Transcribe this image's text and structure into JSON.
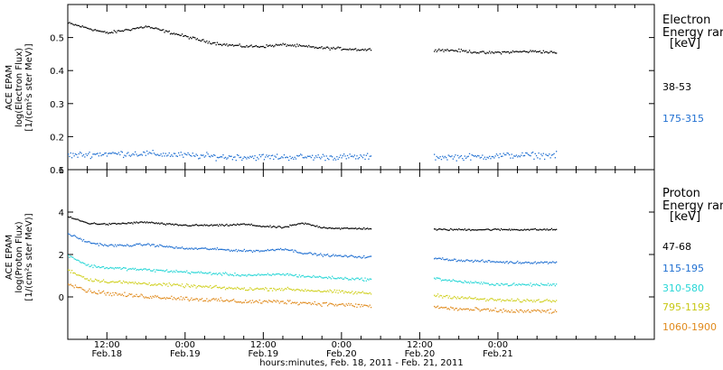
{
  "chart_data": [
    {
      "type": "scatter",
      "panel": "electron",
      "ylabel_lines": [
        "ACE EPAM",
        "log(Electron Flux)",
        "[1/(cm²s ster MeV)]"
      ],
      "ylim": [
        0.1,
        0.6
      ],
      "yticks": [
        0.1,
        0.2,
        0.3,
        0.4,
        0.5
      ],
      "ytick_labels": [
        "0.1",
        "0.2",
        "0.3",
        "0.4",
        "0.5"
      ],
      "legend_title_lines": [
        "Electron",
        "Energy ran",
        "[keV]"
      ],
      "data_gap_hours": [
        46.5,
        56.0
      ],
      "series": [
        {
          "name": "38-53",
          "color": "#000000",
          "x": [
            0,
            3,
            6,
            9,
            12,
            15,
            18,
            21,
            24,
            27,
            30,
            33,
            36,
            39,
            42,
            45,
            56,
            60,
            64,
            68,
            72,
            75
          ],
          "y": [
            0.545,
            0.53,
            0.515,
            0.525,
            0.535,
            0.52,
            0.505,
            0.49,
            0.48,
            0.475,
            0.475,
            0.48,
            0.475,
            0.47,
            0.468,
            0.465,
            0.465,
            0.462,
            0.455,
            0.458,
            0.46,
            0.455
          ]
        },
        {
          "name": "175-315",
          "color": "#1f6fd1",
          "x": [
            0,
            6,
            12,
            18,
            24,
            30,
            36,
            42,
            46,
            56,
            62,
            68,
            75
          ],
          "y": [
            0.145,
            0.15,
            0.15,
            0.145,
            0.14,
            0.14,
            0.14,
            0.14,
            0.14,
            0.14,
            0.14,
            0.145,
            0.145
          ]
        }
      ]
    },
    {
      "type": "scatter",
      "panel": "proton",
      "ylabel_lines": [
        "ACE EPAM",
        "log(Proton Flux)",
        "[1/(cm²s ster MeV)]"
      ],
      "ylim": [
        -2,
        6
      ],
      "yticks": [
        0,
        2,
        4,
        6
      ],
      "ytick_labels": [
        "0",
        "2",
        "4",
        "6"
      ],
      "legend_title_lines": [
        "Proton",
        "Energy ran",
        "[keV]"
      ],
      "data_gap_hours": [
        46.5,
        56.0
      ],
      "series": [
        {
          "name": "47-68",
          "color": "#000000",
          "x": [
            0,
            3,
            6,
            9,
            12,
            15,
            18,
            21,
            24,
            27,
            30,
            33,
            36,
            39,
            42,
            46,
            56,
            62,
            68,
            75
          ],
          "y": [
            3.8,
            3.5,
            3.45,
            3.5,
            3.55,
            3.45,
            3.4,
            3.4,
            3.4,
            3.45,
            3.35,
            3.3,
            3.5,
            3.3,
            3.25,
            3.25,
            3.2,
            3.2,
            3.2,
            3.2
          ]
        },
        {
          "name": "115-195",
          "color": "#1f6fd1",
          "x": [
            0,
            3,
            6,
            9,
            12,
            15,
            18,
            21,
            24,
            27,
            30,
            33,
            36,
            39,
            42,
            46,
            56,
            60,
            64,
            68,
            75
          ],
          "y": [
            3.0,
            2.6,
            2.45,
            2.45,
            2.5,
            2.4,
            2.3,
            2.3,
            2.25,
            2.2,
            2.2,
            2.3,
            2.1,
            2.0,
            1.95,
            1.9,
            1.85,
            1.75,
            1.7,
            1.65,
            1.65
          ]
        },
        {
          "name": "310-580",
          "color": "#27d6d6",
          "x": [
            0,
            3,
            6,
            9,
            12,
            15,
            18,
            21,
            24,
            27,
            30,
            33,
            36,
            39,
            42,
            46,
            56,
            60,
            64,
            68,
            75
          ],
          "y": [
            2.0,
            1.5,
            1.4,
            1.35,
            1.3,
            1.25,
            1.2,
            1.15,
            1.1,
            1.05,
            1.05,
            1.1,
            1.0,
            0.95,
            0.9,
            0.85,
            0.9,
            0.75,
            0.65,
            0.6,
            0.6
          ]
        },
        {
          "name": "795-1193",
          "color": "#d0d020",
          "x": [
            0,
            3,
            6,
            9,
            12,
            15,
            18,
            21,
            24,
            27,
            30,
            33,
            36,
            39,
            42,
            46,
            56,
            60,
            64,
            68,
            75
          ],
          "y": [
            1.3,
            0.85,
            0.75,
            0.7,
            0.65,
            0.6,
            0.55,
            0.5,
            0.45,
            0.4,
            0.4,
            0.4,
            0.35,
            0.3,
            0.25,
            0.2,
            0.1,
            0.0,
            -0.1,
            -0.15,
            -0.15
          ]
        },
        {
          "name": "1060-1900",
          "color": "#e08a1c",
          "x": [
            0,
            3,
            6,
            9,
            12,
            15,
            18,
            21,
            24,
            27,
            30,
            33,
            36,
            39,
            42,
            46,
            56,
            60,
            64,
            68,
            75
          ],
          "y": [
            0.7,
            0.3,
            0.2,
            0.1,
            0.05,
            0.0,
            -0.05,
            -0.1,
            -0.15,
            -0.2,
            -0.2,
            -0.2,
            -0.25,
            -0.3,
            -0.35,
            -0.4,
            -0.45,
            -0.55,
            -0.6,
            -0.65,
            -0.65
          ]
        }
      ]
    }
  ],
  "x_axis": {
    "start": "Feb. 18, 2011 06:00",
    "xlim_hours": [
      0,
      90
    ],
    "ticks": [
      {
        "hours": 6,
        "time": "12:00",
        "date": "Feb.18"
      },
      {
        "hours": 18,
        "time": "0:00",
        "date": "Feb.19"
      },
      {
        "hours": 30,
        "time": "12:00",
        "date": "Feb.19"
      },
      {
        "hours": 42,
        "time": "0:00",
        "date": "Feb.20"
      },
      {
        "hours": 54,
        "time": "12:00",
        "date": "Feb.20"
      },
      {
        "hours": 66,
        "time": "0:00",
        "date": "Feb.21"
      }
    ],
    "xlabel": "hours:minutes, Feb. 18, 2011 - Feb. 21, 2011"
  }
}
